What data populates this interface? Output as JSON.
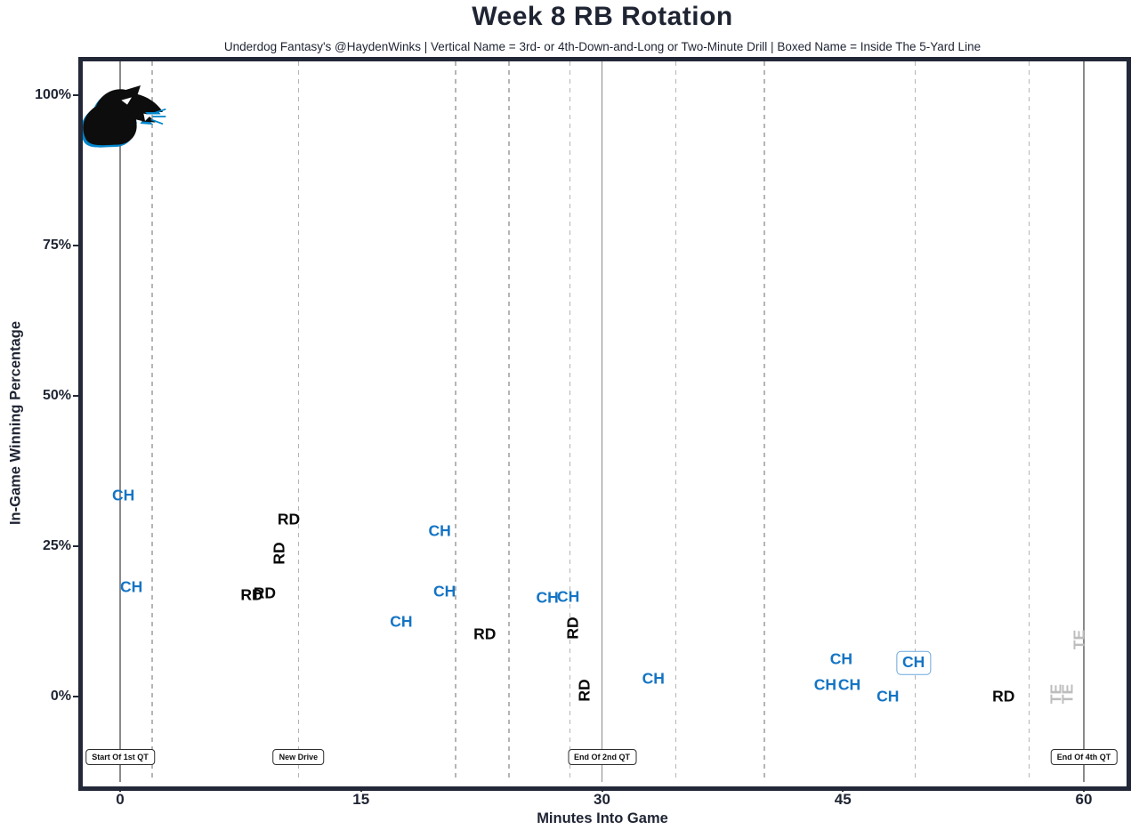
{
  "page": {
    "title": "Week 8 RB Rotation",
    "subtitle": "Underdog Fantasy's @HaydenWinks | Vertical Name = 3rd- or 4th-Down-and-Long or Two-Minute Drill | Boxed Name = Inside The 5-Yard Line"
  },
  "logo": {
    "name": "carolina-panthers-logo"
  },
  "colors": {
    "ch_blue": "#1474c4",
    "rd_black": "#0a0a0a",
    "te_gray": "#bdbdbd",
    "box_outline": "#6aa7dc",
    "title_navy": "#1f2433",
    "border_navy": "#232838",
    "grid_solid": "#8a8a8a",
    "grid_dashed": "#b5b5b5",
    "panthers_blue": "#0085CA"
  },
  "chart_data": {
    "type": "scatter",
    "title": "Week 8 RB Rotation",
    "subtitle": "Underdog Fantasy's @HaydenWinks | Vertical Name = 3rd- or 4th-Down-and-Long or Two-Minute Drill | Boxed Name = Inside The 5-Yard Line",
    "xlabel": "Minutes Into Game",
    "ylabel": "In-Game Winning Percentage",
    "xlim": [
      -2.5,
      62.5
    ],
    "ylim": [
      -14,
      105
    ],
    "grid": {
      "solid_x": [
        0,
        30,
        60
      ],
      "dashed_x": [
        2.0,
        11.1,
        20.9,
        24.2,
        28.0,
        34.6,
        40.1,
        49.5,
        56.6
      ]
    },
    "x_ticks": [
      {
        "label": "0",
        "value": 0
      },
      {
        "label": "15",
        "value": 15
      },
      {
        "label": "30",
        "value": 30
      },
      {
        "label": "45",
        "value": 45
      },
      {
        "label": "60",
        "value": 60
      }
    ],
    "y_ticks": [
      {
        "label": "0%",
        "value": 0
      },
      {
        "label": "25%",
        "value": 25
      },
      {
        "label": "50%",
        "value": 50
      },
      {
        "label": "75%",
        "value": 75
      },
      {
        "label": "100%",
        "value": 100
      }
    ],
    "event_labels": [
      {
        "label": "Start Of 1st QT",
        "x": 0
      },
      {
        "label": "New Drive",
        "x": 11.1
      },
      {
        "label": "End Of 2nd QT",
        "x": 30
      },
      {
        "label": "End Of 4th QT",
        "x": 60
      }
    ],
    "players": [
      {
        "code": "CH",
        "color_key": "ch_blue"
      },
      {
        "code": "RD",
        "color_key": "rd_black"
      },
      {
        "code": "TE",
        "color_key": "te_gray"
      }
    ],
    "points": [
      {
        "player": "CH",
        "x": 0.2,
        "y": 33.5
      },
      {
        "player": "CH",
        "x": 0.7,
        "y": 18.2
      },
      {
        "player": "RD",
        "x": 8.2,
        "y": 16.9
      },
      {
        "player": "RD",
        "x": 9.0,
        "y": 17.2
      },
      {
        "player": "RD",
        "x": 9.9,
        "y": 23.8,
        "vertical": true
      },
      {
        "player": "RD",
        "x": 10.5,
        "y": 29.4
      },
      {
        "player": "CH",
        "x": 17.5,
        "y": 12.4
      },
      {
        "player": "CH",
        "x": 19.9,
        "y": 27.5
      },
      {
        "player": "CH",
        "x": 20.2,
        "y": 17.5
      },
      {
        "player": "RD",
        "x": 22.7,
        "y": 10.4
      },
      {
        "player": "CH",
        "x": 26.6,
        "y": 16.4
      },
      {
        "player": "CH",
        "x": 27.9,
        "y": 16.6
      },
      {
        "player": "RD",
        "x": 28.2,
        "y": 11.4,
        "vertical": true
      },
      {
        "player": "RD",
        "x": 28.9,
        "y": 1.0,
        "vertical": true
      },
      {
        "player": "CH",
        "x": 33.2,
        "y": 3.0
      },
      {
        "player": "CH",
        "x": 43.9,
        "y": 1.9
      },
      {
        "player": "CH",
        "x": 44.9,
        "y": 6.2
      },
      {
        "player": "CH",
        "x": 45.4,
        "y": 1.9
      },
      {
        "player": "CH",
        "x": 47.8,
        "y": 0.0
      },
      {
        "player": "CH",
        "x": 49.4,
        "y": 5.6,
        "boxed": true
      },
      {
        "player": "RD",
        "x": 55.0,
        "y": 0.0
      },
      {
        "player": "TE",
        "x": 58.3,
        "y": 0.4,
        "vertical": true
      },
      {
        "player": "TE",
        "x": 59.0,
        "y": 0.4,
        "vertical": true
      },
      {
        "player": "TE",
        "x": 59.7,
        "y": 9.5,
        "vertical": true
      }
    ]
  }
}
